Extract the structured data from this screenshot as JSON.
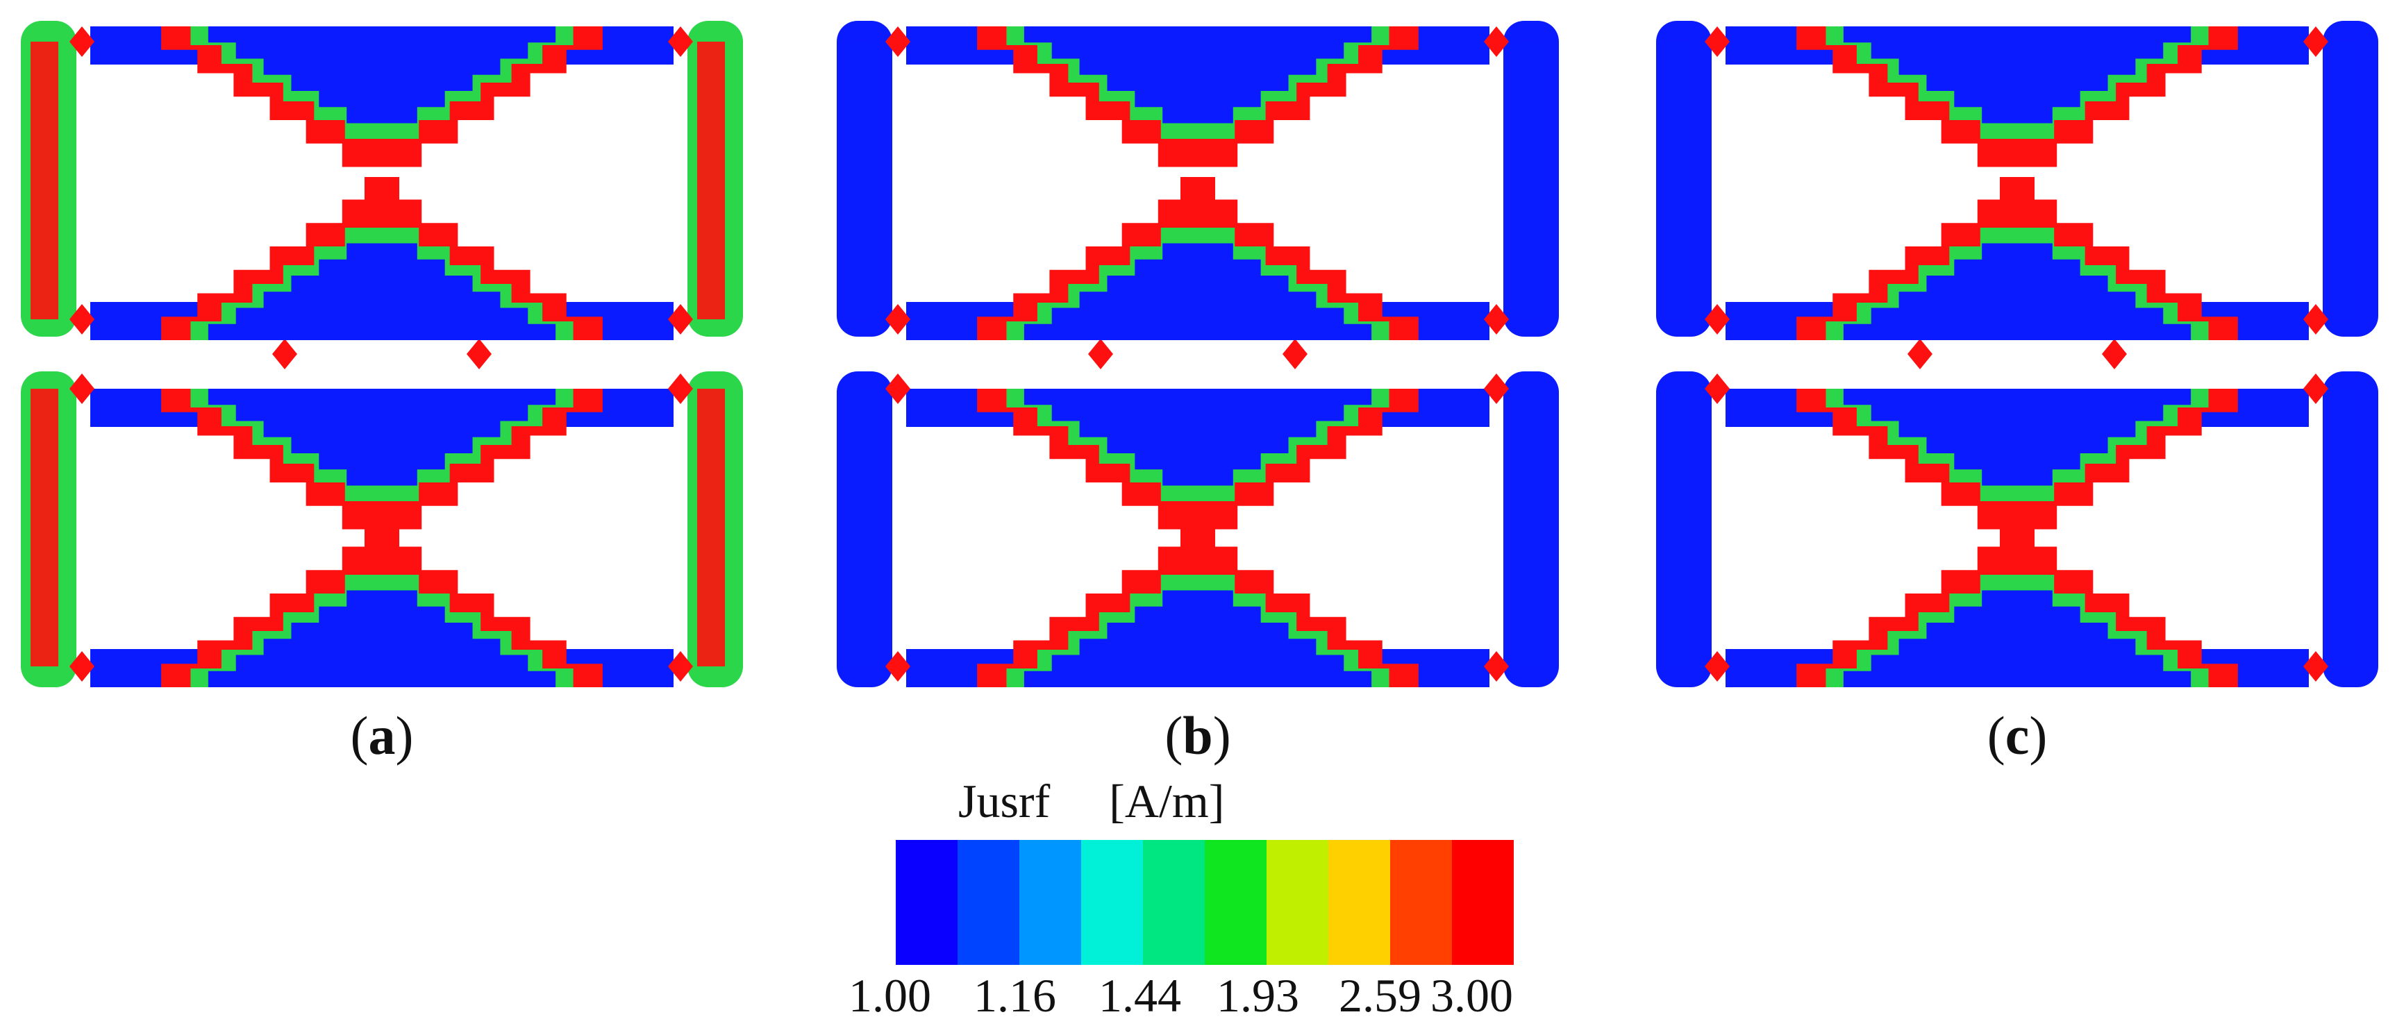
{
  "panels": [
    {
      "label": "a",
      "variant": "a"
    },
    {
      "label": "b",
      "variant": "b"
    },
    {
      "label": "c",
      "variant": "c"
    }
  ],
  "legend": {
    "title": "Jusrf     [A/m]",
    "colors": [
      "#0a00ff",
      "#0044ff",
      "#0096ff",
      "#00f0d8",
      "#00e680",
      "#10e620",
      "#c0f000",
      "#ffd000",
      "#ff4000",
      "#ff0000"
    ],
    "ticks": [
      "1.00",
      "1.16",
      "1.44",
      "1.93",
      "2.59",
      "3.00"
    ]
  },
  "palette": {
    "low": "#0a1cff",
    "green": "#2bd64a",
    "high": "#ff1010",
    "mid": "#ffe100",
    "cyan": "#14c8d8"
  }
}
